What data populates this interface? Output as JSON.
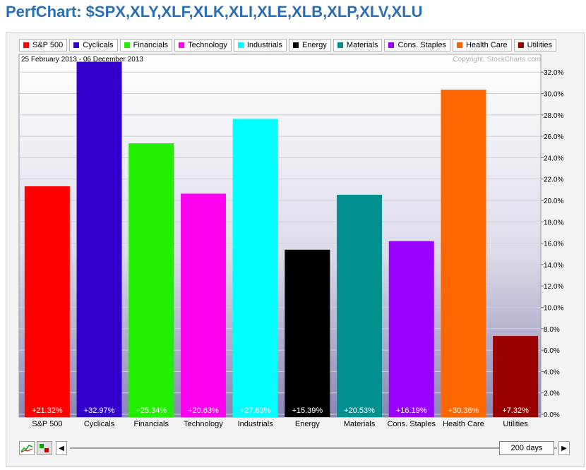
{
  "header": {
    "title": "PerfChart: $SPX,XLY,XLF,XLK,XLI,XLE,XLB,XLP,XLV,XLU"
  },
  "date_range": "25 February 2013 - 06 December 2013",
  "copyright": "Copyright, StockCharts.com",
  "nav": {
    "period_label": "200 days",
    "left_arrow": "◀",
    "right_arrow": "▶"
  },
  "chart_data": {
    "type": "bar",
    "categories": [
      "S&P 500",
      "Cyclicals",
      "Financials",
      "Technology",
      "Industrials",
      "Energy",
      "Materials",
      "Cons. Staples",
      "Health Care",
      "Utilities"
    ],
    "values": [
      21.32,
      32.97,
      25.34,
      20.63,
      27.63,
      15.39,
      20.53,
      16.19,
      30.36,
      7.32
    ],
    "value_labels": [
      "+21.32%",
      "+32.97%",
      "+25.34%",
      "+20.63%",
      "+27.63%",
      "+15.39%",
      "+20.53%",
      "+16.19%",
      "+30.36%",
      "+7.32%"
    ],
    "colors": [
      "#ff0000",
      "#3300cc",
      "#22ee00",
      "#ff00ee",
      "#00ffff",
      "#000000",
      "#009090",
      "#9900ff",
      "#ff6600",
      "#990000"
    ],
    "legend": [
      "S&P 500",
      "Cyclicals",
      "Financials",
      "Technology",
      "Industrials",
      "Energy",
      "Materials",
      "Cons. Staples",
      "Health Care",
      "Utilities"
    ],
    "legend_placement": "top",
    "yticks": [
      "0.0%",
      "2.0%",
      "4.0%",
      "6.0%",
      "8.0%",
      "10.0%",
      "12.0%",
      "14.0%",
      "16.0%",
      "18.0%",
      "20.0%",
      "22.0%",
      "24.0%",
      "26.0%",
      "28.0%",
      "30.0%",
      "32.0%"
    ],
    "ylim": [
      0,
      32.97
    ],
    "grid": true
  }
}
